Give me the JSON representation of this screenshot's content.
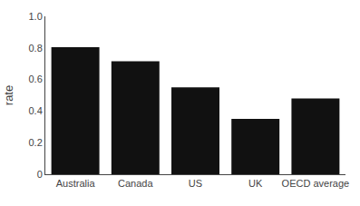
{
  "chart_data": {
    "type": "bar",
    "categories": [
      "Australia",
      "Canada",
      "US",
      "UK",
      "OECD average"
    ],
    "values": [
      0.805,
      0.715,
      0.55,
      0.35,
      0.48
    ],
    "color": "#111111",
    "ylabel": "rate",
    "ylim": [
      0,
      1.0
    ],
    "yticks": [
      0,
      0.2,
      0.4,
      0.6,
      0.8,
      {
        "value": 1.0,
        "label": "1.0"
      }
    ],
    "grid": false
  }
}
